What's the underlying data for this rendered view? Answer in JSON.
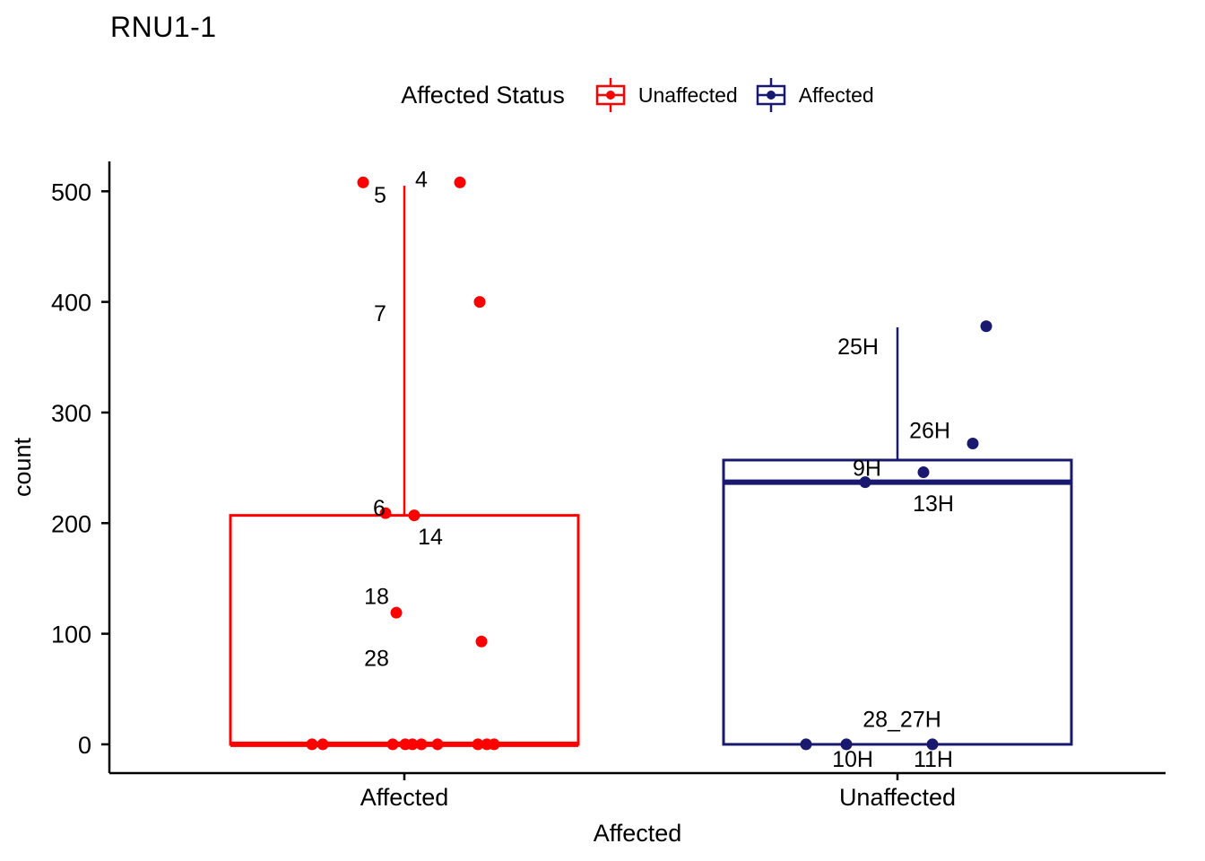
{
  "title": "RNU1-1",
  "legend": {
    "title": "Affected Status",
    "entries": [
      {
        "label": "Unaffected",
        "color": "#FF0000"
      },
      {
        "label": "Affected",
        "color": "#191970"
      }
    ]
  },
  "chart_data": {
    "type": "boxplot",
    "title": "RNU1-1",
    "xlabel": "Affected",
    "ylabel": "count",
    "categories": [
      "Affected",
      "Unaffected"
    ],
    "y_ticks": [
      0,
      100,
      200,
      300,
      400,
      500
    ],
    "ylim": [
      -26,
      527
    ],
    "grid": "off",
    "legend_position": "top",
    "groups": [
      {
        "category": "Affected",
        "series": "Unaffected",
        "color": "#FF0000",
        "box": {
          "q1": 0,
          "median": 0,
          "q3": 207,
          "whisker_low": 0,
          "whisker_high": 505
        },
        "points": [
          {
            "count": 508,
            "jitter": -46
          },
          {
            "count": 508,
            "jitter": 62
          },
          {
            "count": 400,
            "jitter": 84
          },
          {
            "count": 209,
            "jitter": -21
          },
          {
            "count": 207,
            "jitter": 11
          },
          {
            "count": 119,
            "jitter": -9
          },
          {
            "count": 93,
            "jitter": 86
          },
          {
            "count": 0,
            "jitter": -103
          },
          {
            "count": 0,
            "jitter": -91
          },
          {
            "count": 0,
            "jitter": -13
          },
          {
            "count": 0,
            "jitter": 1
          },
          {
            "count": 0,
            "jitter": 9
          },
          {
            "count": 0,
            "jitter": 19
          },
          {
            "count": 0,
            "jitter": 37
          },
          {
            "count": 0,
            "jitter": 82
          },
          {
            "count": 0,
            "jitter": 92
          },
          {
            "count": 0,
            "jitter": 100
          }
        ],
        "labels": [
          {
            "text": "4",
            "count": 511,
            "jitter": 19
          },
          {
            "text": "5",
            "count": 497,
            "jitter": -27
          },
          {
            "text": "7",
            "count": 390,
            "jitter": -27
          },
          {
            "text": "6",
            "count": 214,
            "jitter": -28
          },
          {
            "text": "14",
            "count": 188,
            "jitter": 29
          },
          {
            "text": "18",
            "count": 134,
            "jitter": -31
          },
          {
            "text": "28",
            "count": 78,
            "jitter": -31
          }
        ]
      },
      {
        "category": "Unaffected",
        "series": "Affected",
        "color": "#191970",
        "box": {
          "q1": 0,
          "median": 237,
          "q3": 257,
          "whisker_low": 0,
          "whisker_high": 377
        },
        "points": [
          {
            "count": 378,
            "jitter": 99
          },
          {
            "count": 272,
            "jitter": 84
          },
          {
            "count": 246,
            "jitter": 29
          },
          {
            "count": 237,
            "jitter": -36
          },
          {
            "count": 0,
            "jitter": -102
          },
          {
            "count": 0,
            "jitter": -57
          },
          {
            "count": 0,
            "jitter": 39
          }
        ],
        "labels": [
          {
            "text": "25H",
            "count": 360,
            "jitter": -44
          },
          {
            "text": "26H",
            "count": 284,
            "jitter": 36
          },
          {
            "text": "9H",
            "count": 250,
            "jitter": -34
          },
          {
            "text": "13H",
            "count": 218,
            "jitter": 40
          },
          {
            "text": "28_27H",
            "count": 23,
            "jitter": 5
          },
          {
            "text": "10H",
            "count": -13,
            "jitter": -50
          },
          {
            "text": "11H",
            "count": -13,
            "jitter": 40
          }
        ]
      }
    ]
  }
}
